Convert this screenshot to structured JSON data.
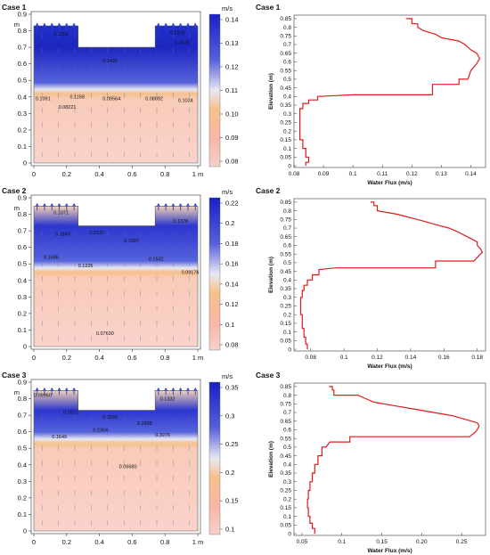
{
  "figure": {
    "panels": [
      {
        "label": "Case 1",
        "contour": {
          "units": "m/s",
          "colorbar_ticks": [
            "0.14",
            "0.13",
            "0.12",
            "0.11",
            "0.10",
            "0.09",
            "0.08"
          ],
          "x_ticks": [
            "0",
            "0.2",
            "0.4",
            "0.6",
            "0.8",
            "1 m"
          ],
          "y_ticks": [
            "0.9",
            "0.8",
            "0.7",
            "0.6",
            "0.5",
            "0.4",
            "0.3",
            "0.2",
            "0.1",
            "0"
          ],
          "y_unit": "m",
          "annotations": [
            "0.1262",
            "0.1225",
            "0.1531",
            "0.1431",
            "0.1091",
            "0.1158",
            "0.09564",
            "0.08892",
            "0.1024",
            "0.08221"
          ]
        },
        "profile": {
          "xlabel": "Water Flux (m/s)",
          "ylabel": "Elevation (m)",
          "x_ticks": [
            "0.08",
            "0.09",
            "0.1",
            "0.11",
            "0.12",
            "0.13",
            "0.14"
          ],
          "y_ticks": [
            "0.85",
            "0.8",
            "0.75",
            "0.7",
            "0.65",
            "0.6",
            "0.55",
            "0.5",
            "0.45",
            "0.4",
            "0.35",
            "0.3",
            "0.25",
            "0.2",
            "0.15",
            "0.1",
            "0.05",
            "0"
          ]
        }
      },
      {
        "label": "Case 2",
        "contour": {
          "units": "m/s",
          "colorbar_ticks": [
            "0.22",
            "0.2",
            "0.18",
            "0.16",
            "0.14",
            "0.12",
            "0.1",
            "0.08"
          ],
          "x_ticks": [
            "0",
            "0.2",
            "0.4",
            "0.6",
            "0.8",
            "1 m"
          ],
          "y_ticks": [
            "0.9",
            "0.8",
            "0.7",
            "0.6",
            "0.5",
            "0.4",
            "0.3",
            "0.2",
            "0.1",
            "0"
          ],
          "y_unit": "m",
          "annotations": [
            "0.1071",
            "0.1378",
            "0.2137",
            "0.1840",
            "0.1997",
            "0.1686",
            "0.1225",
            "0.1532",
            "0.09176",
            "0.07630"
          ]
        },
        "profile": {
          "xlabel": "Water Flux (m/s)",
          "ylabel": "Elevation (m)",
          "x_ticks": [
            "0.08",
            "0.1",
            "0.12",
            "0.14",
            "0.16",
            "0.18"
          ],
          "y_ticks": [
            "0.85",
            "0.8",
            "0.75",
            "0.7",
            "0.65",
            "0.6",
            "0.55",
            "0.5",
            "0.45",
            "0.4",
            "0.35",
            "0.3",
            "0.25",
            "0.2",
            "0.15",
            "0.1",
            "0.05",
            "0"
          ]
        }
      },
      {
        "label": "Case 3",
        "contour": {
          "units": "m/s",
          "colorbar_ticks": [
            "0.35",
            "0.3",
            "0.25",
            "0.2",
            "0.15",
            "0.1"
          ],
          "x_ticks": [
            "0",
            "0.2",
            "0.4",
            "0.6",
            "0.8",
            "1 m"
          ],
          "y_ticks": [
            "0.9",
            "0.8",
            "0.7",
            "0.6",
            "0.5",
            "0.4",
            "0.3",
            "0.2",
            "0.1",
            "0"
          ],
          "y_unit": "m",
          "annotations": [
            "0.09950",
            "0.1332",
            "0.2621",
            "0.3265",
            "0.2958",
            "0.2304",
            "0.1649",
            "0.3976",
            "0.06680"
          ]
        },
        "profile": {
          "xlabel": "Water Flux (m/s)",
          "ylabel": "Elevation (m)",
          "x_ticks": [
            "0.05",
            "0.1",
            "0.15",
            "0.20",
            "0.25"
          ],
          "y_ticks": [
            "0.85",
            "0.8",
            "0.75",
            "0.7",
            "0.65",
            "0.6",
            "0.55",
            "0.5",
            "0.45",
            "0.4",
            "0.35",
            "0.3",
            "0.25",
            "0.2",
            "0.15",
            "0.1",
            "0.05",
            "0"
          ]
        }
      }
    ]
  },
  "chart_data": [
    {
      "type": "heatmap",
      "title": "Case 1",
      "units": "m/s",
      "xlim": [
        0,
        1
      ],
      "ylim": [
        0,
        0.9
      ],
      "colorbar_range": [
        0.08,
        0.14
      ],
      "domain": {
        "trench_x": [
          0.27,
          0.74
        ],
        "trench_bottom": 0.7,
        "top": 0.83,
        "interface": 0.42
      },
      "annotations": [
        {
          "x": 0.12,
          "y": 0.77,
          "value": "0.1262"
        },
        {
          "x": 0.83,
          "y": 0.78,
          "value": "0.1225"
        },
        {
          "x": 0.86,
          "y": 0.72,
          "value": "0.1531"
        },
        {
          "x": 0.42,
          "y": 0.61,
          "value": "0.1431"
        },
        {
          "x": 0.01,
          "y": 0.38,
          "value": "0.1091"
        },
        {
          "x": 0.22,
          "y": 0.39,
          "value": "0.1158"
        },
        {
          "x": 0.42,
          "y": 0.38,
          "value": "0.09564"
        },
        {
          "x": 0.68,
          "y": 0.38,
          "value": "0.08892"
        },
        {
          "x": 0.88,
          "y": 0.37,
          "value": "0.1024"
        },
        {
          "x": 0.15,
          "y": 0.33,
          "value": "0.08221"
        }
      ]
    },
    {
      "type": "line",
      "title": "Case 1",
      "xlabel": "Water Flux (m/s)",
      "ylabel": "Elevation (m)",
      "xlim": [
        0.08,
        0.145
      ],
      "ylim": [
        -0.01,
        0.87
      ],
      "series": [
        {
          "points": [
            [
              0.084,
              0.0
            ],
            [
              0.084,
              0.02
            ],
            [
              0.085,
              0.02
            ],
            [
              0.085,
              0.05
            ],
            [
              0.084,
              0.05
            ],
            [
              0.084,
              0.1
            ],
            [
              0.083,
              0.1
            ],
            [
              0.083,
              0.15
            ],
            [
              0.082,
              0.15
            ],
            [
              0.082,
              0.2
            ],
            [
              0.082,
              0.25
            ],
            [
              0.082,
              0.3
            ],
            [
              0.082,
              0.33
            ],
            [
              0.083,
              0.33
            ],
            [
              0.083,
              0.36
            ],
            [
              0.085,
              0.36
            ],
            [
              0.085,
              0.38
            ],
            [
              0.088,
              0.38
            ],
            [
              0.088,
              0.4
            ],
            [
              0.1,
              0.41
            ],
            [
              0.127,
              0.41
            ],
            [
              0.127,
              0.47
            ],
            [
              0.136,
              0.47
            ],
            [
              0.136,
              0.5
            ],
            [
              0.139,
              0.5
            ],
            [
              0.14,
              0.55
            ],
            [
              0.142,
              0.59
            ],
            [
              0.143,
              0.62
            ],
            [
              0.142,
              0.65
            ],
            [
              0.14,
              0.67
            ],
            [
              0.138,
              0.7
            ],
            [
              0.136,
              0.72
            ],
            [
              0.13,
              0.74
            ],
            [
              0.128,
              0.76
            ],
            [
              0.124,
              0.78
            ],
            [
              0.122,
              0.8
            ],
            [
              0.122,
              0.82
            ],
            [
              0.12,
              0.82
            ],
            [
              0.12,
              0.85
            ],
            [
              0.118,
              0.85
            ]
          ]
        }
      ]
    },
    {
      "type": "heatmap",
      "title": "Case 2",
      "units": "m/s",
      "xlim": [
        0,
        1
      ],
      "ylim": [
        0,
        0.9
      ],
      "colorbar_range": [
        0.08,
        0.22
      ],
      "domain": {
        "trench_x": [
          0.27,
          0.74
        ],
        "trench_bottom": 0.73,
        "top": 0.85,
        "interface": 0.45
      },
      "annotations": [
        {
          "x": 0.12,
          "y": 0.8,
          "value": "0.1071"
        },
        {
          "x": 0.85,
          "y": 0.75,
          "value": "0.1378"
        },
        {
          "x": 0.34,
          "y": 0.68,
          "value": "0.2137"
        },
        {
          "x": 0.13,
          "y": 0.67,
          "value": "0.1840"
        },
        {
          "x": 0.55,
          "y": 0.63,
          "value": "0.1997"
        },
        {
          "x": 0.06,
          "y": 0.53,
          "value": "0.1686"
        },
        {
          "x": 0.27,
          "y": 0.48,
          "value": "0.1225"
        },
        {
          "x": 0.7,
          "y": 0.52,
          "value": "0.1532"
        },
        {
          "x": 0.9,
          "y": 0.44,
          "value": "0.09176"
        },
        {
          "x": 0.38,
          "y": 0.07,
          "value": "0.07630"
        }
      ]
    },
    {
      "type": "line",
      "title": "Case 2",
      "xlabel": "Water Flux (m/s)",
      "ylabel": "Elevation (m)",
      "xlim": [
        0.07,
        0.185
      ],
      "ylim": [
        -0.01,
        0.87
      ],
      "series": [
        {
          "points": [
            [
              0.078,
              0.0
            ],
            [
              0.078,
              0.03
            ],
            [
              0.077,
              0.03
            ],
            [
              0.077,
              0.07
            ],
            [
              0.076,
              0.07
            ],
            [
              0.076,
              0.12
            ],
            [
              0.075,
              0.12
            ],
            [
              0.075,
              0.2
            ],
            [
              0.074,
              0.2
            ],
            [
              0.074,
              0.3
            ],
            [
              0.075,
              0.3
            ],
            [
              0.075,
              0.34
            ],
            [
              0.076,
              0.34
            ],
            [
              0.076,
              0.37
            ],
            [
              0.078,
              0.37
            ],
            [
              0.078,
              0.4
            ],
            [
              0.081,
              0.4
            ],
            [
              0.081,
              0.43
            ],
            [
              0.085,
              0.43
            ],
            [
              0.085,
              0.46
            ],
            [
              0.095,
              0.47
            ],
            [
              0.155,
              0.47
            ],
            [
              0.155,
              0.51
            ],
            [
              0.178,
              0.51
            ],
            [
              0.181,
              0.54
            ],
            [
              0.183,
              0.56
            ],
            [
              0.182,
              0.58
            ],
            [
              0.18,
              0.6
            ],
            [
              0.18,
              0.62
            ],
            [
              0.176,
              0.64
            ],
            [
              0.172,
              0.66
            ],
            [
              0.168,
              0.68
            ],
            [
              0.163,
              0.7
            ],
            [
              0.155,
              0.72
            ],
            [
              0.148,
              0.74
            ],
            [
              0.14,
              0.76
            ],
            [
              0.132,
              0.78
            ],
            [
              0.12,
              0.8
            ],
            [
              0.12,
              0.83
            ],
            [
              0.118,
              0.83
            ],
            [
              0.118,
              0.85
            ],
            [
              0.116,
              0.85
            ]
          ]
        }
      ]
    },
    {
      "type": "heatmap",
      "title": "Case 3",
      "units": "m/s",
      "xlim": [
        0,
        1
      ],
      "ylim": [
        0,
        0.9
      ],
      "colorbar_range": [
        0.05,
        0.38
      ],
      "domain": {
        "trench_x": [
          0.27,
          0.74
        ],
        "trench_bottom": 0.73,
        "top": 0.85,
        "interface": 0.53
      },
      "annotations": [
        {
          "x": 0.0,
          "y": 0.81,
          "value": "0.09950"
        },
        {
          "x": 0.77,
          "y": 0.79,
          "value": "0.1332"
        },
        {
          "x": 0.18,
          "y": 0.71,
          "value": "0.2621"
        },
        {
          "x": 0.42,
          "y": 0.68,
          "value": "0.3265"
        },
        {
          "x": 0.63,
          "y": 0.64,
          "value": "0.2958"
        },
        {
          "x": 0.36,
          "y": 0.6,
          "value": "0.2304"
        },
        {
          "x": 0.11,
          "y": 0.56,
          "value": "0.1649"
        },
        {
          "x": 0.74,
          "y": 0.57,
          "value": "0.3976"
        },
        {
          "x": 0.52,
          "y": 0.38,
          "value": "0.06680"
        }
      ]
    },
    {
      "type": "line",
      "title": "Case 3",
      "xlabel": "Water Flux (m/s)",
      "ylabel": "Elevation (m)",
      "xlim": [
        0.04,
        0.28
      ],
      "ylim": [
        -0.01,
        0.87
      ],
      "series": [
        {
          "points": [
            [
              0.066,
              0.0
            ],
            [
              0.066,
              0.03
            ],
            [
              0.063,
              0.03
            ],
            [
              0.063,
              0.06
            ],
            [
              0.06,
              0.06
            ],
            [
              0.06,
              0.1
            ],
            [
              0.058,
              0.1
            ],
            [
              0.058,
              0.15
            ],
            [
              0.057,
              0.15
            ],
            [
              0.057,
              0.2
            ],
            [
              0.058,
              0.2
            ],
            [
              0.058,
              0.25
            ],
            [
              0.06,
              0.25
            ],
            [
              0.06,
              0.3
            ],
            [
              0.063,
              0.3
            ],
            [
              0.063,
              0.35
            ],
            [
              0.066,
              0.35
            ],
            [
              0.066,
              0.4
            ],
            [
              0.07,
              0.4
            ],
            [
              0.07,
              0.45
            ],
            [
              0.075,
              0.45
            ],
            [
              0.075,
              0.5
            ],
            [
              0.08,
              0.5
            ],
            [
              0.085,
              0.53
            ],
            [
              0.11,
              0.53
            ],
            [
              0.11,
              0.56
            ],
            [
              0.26,
              0.56
            ],
            [
              0.268,
              0.59
            ],
            [
              0.272,
              0.62
            ],
            [
              0.27,
              0.64
            ],
            [
              0.255,
              0.66
            ],
            [
              0.24,
              0.68
            ],
            [
              0.215,
              0.7
            ],
            [
              0.19,
              0.72
            ],
            [
              0.165,
              0.74
            ],
            [
              0.14,
              0.76
            ],
            [
              0.13,
              0.78
            ],
            [
              0.12,
              0.8
            ],
            [
              0.09,
              0.8
            ],
            [
              0.09,
              0.83
            ],
            [
              0.088,
              0.83
            ],
            [
              0.088,
              0.85
            ],
            [
              0.084,
              0.85
            ]
          ]
        }
      ]
    }
  ]
}
